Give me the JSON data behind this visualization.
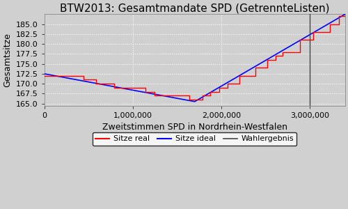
{
  "title": "BTW2013: Gesamtmandate SPD (GetrennteListen)",
  "xlabel": "Zweitstimmen SPD in Nordrhein-Westfalen",
  "ylabel": "Gesamtsitze",
  "legend_labels": [
    "Sitze real",
    "Sitze ideal",
    "Wahlergebnis"
  ],
  "wahlergebnis": 3000000,
  "x_max": 3400000,
  "x_start": 0,
  "y_ideal_start": 172.5,
  "y_ideal_min": 165.5,
  "y_ideal_min_x": 1700000,
  "y_ideal_end": 187.5,
  "ylim": [
    164.5,
    187.5
  ],
  "yticks": [
    165.0,
    167.5,
    170.0,
    172.5,
    175.0,
    177.5,
    180.0,
    182.5,
    185.0
  ],
  "xticks": [
    0,
    1000000,
    2000000,
    3000000
  ],
  "xtick_labels": [
    "0",
    "1,000,000",
    "2,000,000",
    "3,000,000"
  ],
  "bg_color": "#d0d0d0",
  "plot_bg_color": "#d0d0d0",
  "grid_color": "#ffffff",
  "grid_linestyle": "dotted",
  "title_fontsize": 11,
  "axis_fontsize": 9,
  "tick_fontsize": 8,
  "legend_fontsize": 8,
  "step_seed": 12,
  "n_steps": 35
}
